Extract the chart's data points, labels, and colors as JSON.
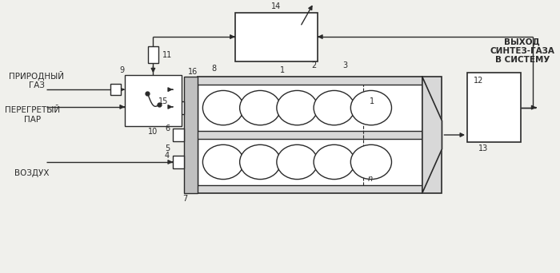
{
  "bg_color": "#f0f0ec",
  "line_color": "#2a2a2a",
  "fig_width": 7.0,
  "fig_height": 3.42,
  "dpi": 100,
  "labels": {
    "prirodny_gaz": "ПРИРОДНЫЙ\nГАЗ",
    "peregretyy_par": "ПЕРЕГРЕТЫЙ\nПАР",
    "vozdukh": "ВОЗДУХ",
    "vykhod": "ВЫХОД\nСИНТЕЗ-ГАЗА\nВ СИСТЕМУ"
  },
  "nums": [
    "1",
    "2",
    "3",
    "4",
    "5",
    "6",
    "7",
    "8",
    "9",
    "10",
    "11",
    "12",
    "13",
    "14",
    "15",
    "16",
    "n"
  ]
}
